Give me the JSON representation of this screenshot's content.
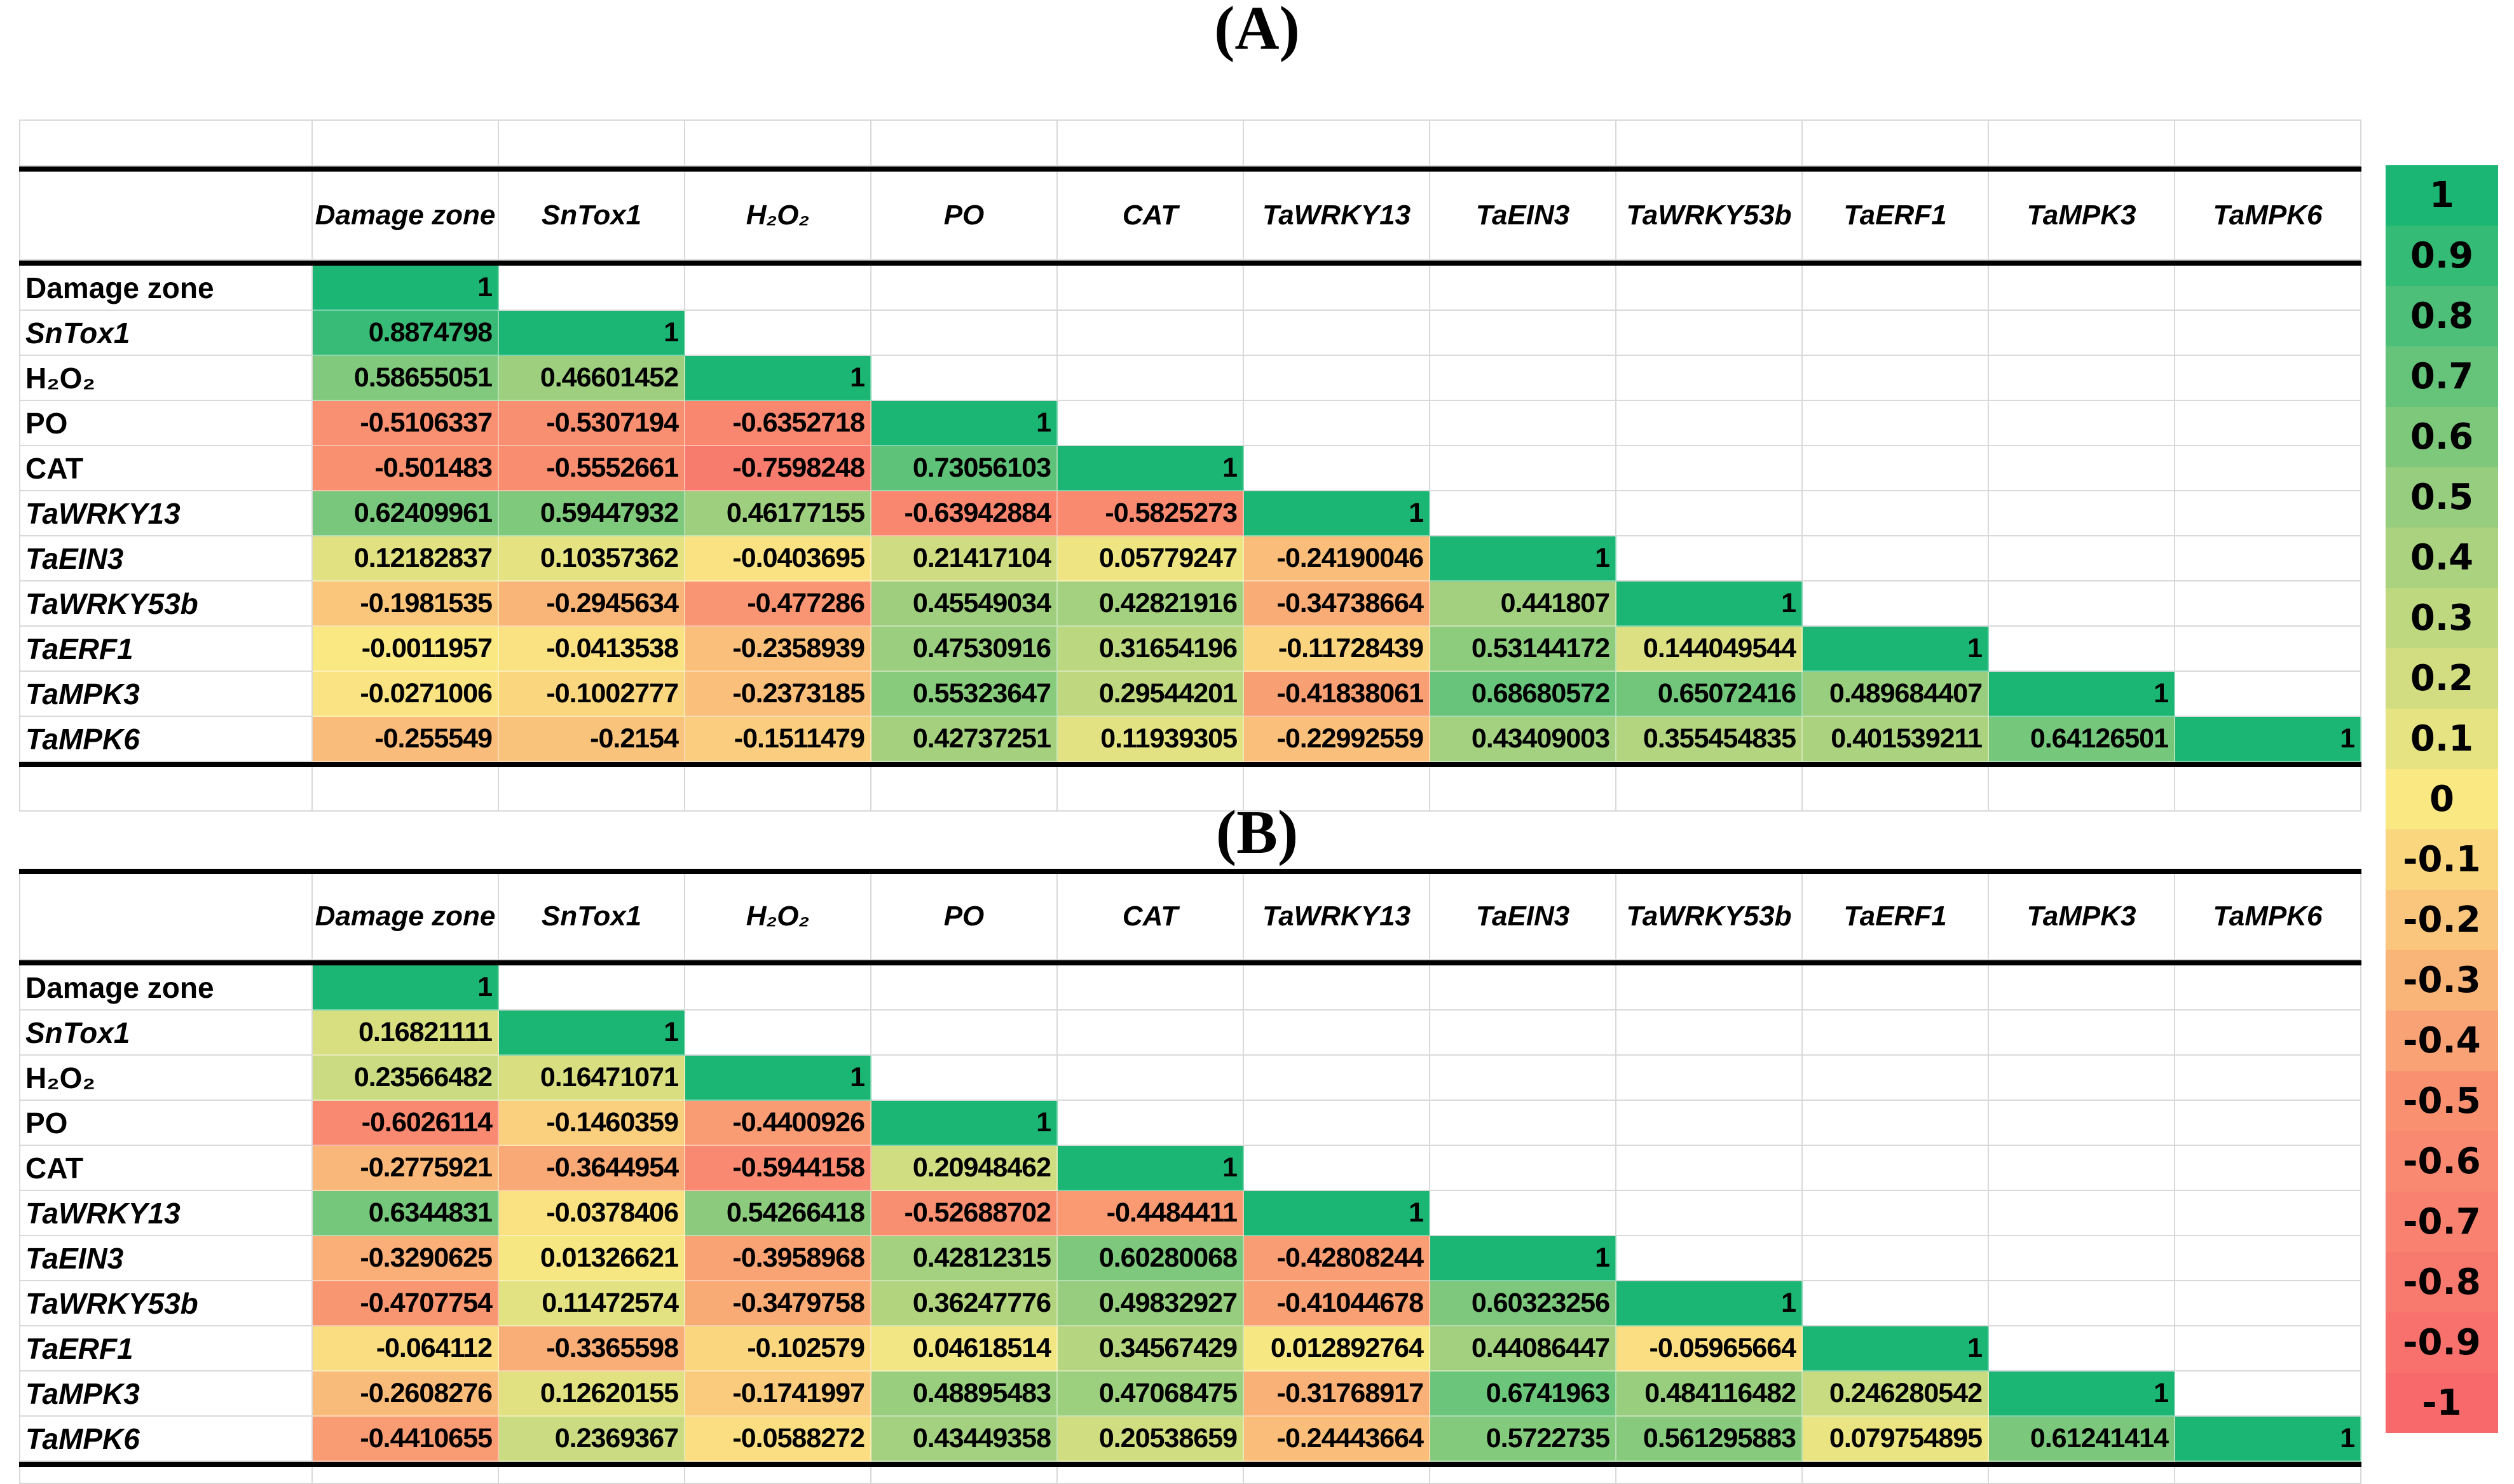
{
  "figure": {
    "panel_a_title": "(A)",
    "panel_b_title": "(B)"
  },
  "row_label_italic": [
    false,
    true,
    false,
    false,
    false,
    true,
    true,
    true,
    true,
    true,
    true
  ],
  "chart_data": [
    {
      "type": "heatmap",
      "panel": "A",
      "title": "(A)",
      "x_labels": [
        "Damage zone",
        "SnTox1",
        "H₂O₂",
        "PO",
        "CAT",
        "TaWRKY13",
        "TaEIN3",
        "TaWRKY53b",
        "TaERF1",
        "TaMPK3",
        "TaMPK6"
      ],
      "y_labels": [
        "Damage zone",
        "SnTox1",
        "H₂O₂",
        "PO",
        "CAT",
        "TaWRKY13",
        "TaEIN3",
        "TaWRKY53b",
        "TaERF1",
        "TaMPK3",
        "TaMPK6"
      ],
      "value_range": [
        -1,
        1
      ],
      "cells": [
        [
          "1"
        ],
        [
          "0.8874798",
          "1"
        ],
        [
          "0.58655051",
          "0.46601452",
          "1"
        ],
        [
          "-0.5106337",
          "-0.5307194",
          "-0.6352718",
          "1"
        ],
        [
          "-0.501483",
          "-0.5552661",
          "-0.7598248",
          "0.73056103",
          "1"
        ],
        [
          "0.62409961",
          "0.59447932",
          "0.46177155",
          "-0.63942884",
          "-0.5825273",
          "1"
        ],
        [
          "0.12182837",
          "0.10357362",
          "-0.0403695",
          "0.21417104",
          "0.05779247",
          "-0.24190046",
          "1"
        ],
        [
          "-0.1981535",
          "-0.2945634",
          "-0.477286",
          "0.45549034",
          "0.42821916",
          "-0.34738664",
          "0.441807",
          "1"
        ],
        [
          "-0.0011957",
          "-0.0413538",
          "-0.2358939",
          "0.47530916",
          "0.31654196",
          "-0.11728439",
          "0.53144172",
          "0.144049544",
          "1"
        ],
        [
          "-0.0271006",
          "-0.1002777",
          "-0.2373185",
          "0.55323647",
          "0.29544201",
          "-0.41838061",
          "0.68680572",
          "0.65072416",
          "0.489684407",
          "1"
        ],
        [
          "-0.255549",
          "-0.2154",
          "-0.1511479",
          "0.42737251",
          "0.11939305",
          "-0.22992559",
          "0.43409003",
          "0.355454835",
          "0.401539211",
          "0.64126501",
          "1"
        ]
      ]
    },
    {
      "type": "heatmap",
      "panel": "B",
      "title": "(B)",
      "x_labels": [
        "Damage zone",
        "SnTox1",
        "H₂O₂",
        "PO",
        "CAT",
        "TaWRKY13",
        "TaEIN3",
        "TaWRKY53b",
        "TaERF1",
        "TaMPK3",
        "TaMPK6"
      ],
      "y_labels": [
        "Damage zone",
        "SnTox1",
        "H₂O₂",
        "PO",
        "CAT",
        "TaWRKY13",
        "TaEIN3",
        "TaWRKY53b",
        "TaERF1",
        "TaMPK3",
        "TaMPK6"
      ],
      "value_range": [
        -1,
        1
      ],
      "cells": [
        [
          "1"
        ],
        [
          "0.16821111",
          "1"
        ],
        [
          "0.23566482",
          "0.16471071",
          "1"
        ],
        [
          "-0.6026114",
          "-0.1460359",
          "-0.4400926",
          "1"
        ],
        [
          "-0.2775921",
          "-0.3644954",
          "-0.5944158",
          "0.20948462",
          "1"
        ],
        [
          "0.6344831",
          "-0.0378406",
          "0.54266418",
          "-0.52688702",
          "-0.4484411",
          "1"
        ],
        [
          "-0.3290625",
          "0.01326621",
          "-0.3958968",
          "0.42812315",
          "0.60280068",
          "-0.42808244",
          "1"
        ],
        [
          "-0.4707754",
          "0.11472574",
          "-0.3479758",
          "0.36247776",
          "0.49832927",
          "-0.41044678",
          "0.60323256",
          "1"
        ],
        [
          "-0.064112",
          "-0.3365598",
          "-0.102579",
          "0.04618514",
          "0.34567429",
          "0.012892764",
          "0.44086447",
          "-0.05965664",
          "1"
        ],
        [
          "-0.2608276",
          "0.12620155",
          "-0.1741997",
          "0.48895483",
          "0.47068475",
          "-0.31768917",
          "0.6741963",
          "0.484116482",
          "0.246280542",
          "1"
        ],
        [
          "-0.4410655",
          "0.2369367",
          "-0.0588272",
          "0.43449358",
          "0.20538659",
          "-0.24443664",
          "0.5722735",
          "0.561295883",
          "0.079754895",
          "0.61241414",
          "1"
        ]
      ]
    }
  ],
  "legend": {
    "tick_labels": [
      "1",
      "0.9",
      "0.8",
      "0.7",
      "0.6",
      "0.5",
      "0.4",
      "0.3",
      "0.2",
      "0.1",
      "0",
      "-0.1",
      "-0.2",
      "-0.3",
      "-0.4",
      "-0.5",
      "-0.6",
      "-0.7",
      "-0.8",
      "-0.9",
      "-1"
    ],
    "tick_values": [
      1,
      0.9,
      0.8,
      0.7,
      0.6,
      0.5,
      0.4,
      0.3,
      0.2,
      0.1,
      0,
      -0.1,
      -0.2,
      -0.3,
      -0.4,
      -0.5,
      -0.6,
      -0.7,
      -0.8,
      -0.9,
      -1
    ]
  },
  "colors": {
    "scale_stops": [
      {
        "value": -1,
        "hex": "#F8696B"
      },
      {
        "value": -0.5,
        "hex": "#F99171"
      },
      {
        "value": 0,
        "hex": "#FAE883"
      },
      {
        "value": 0.5,
        "hex": "#96CD7E"
      },
      {
        "value": 1,
        "hex": "#1CB674"
      }
    ],
    "grid_line": "#D9D9D9",
    "thick_border": "#000000",
    "background": "#FFFFFF",
    "text": "#000000"
  }
}
